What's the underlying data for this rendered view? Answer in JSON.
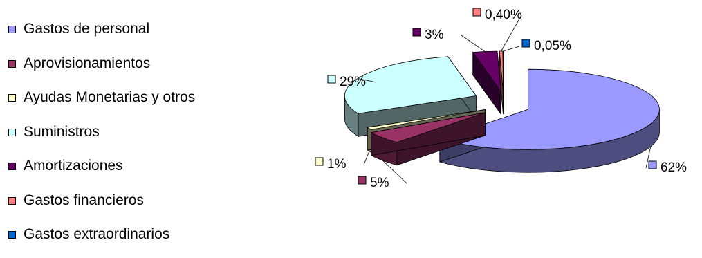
{
  "chart_data": {
    "type": "pie",
    "title": "",
    "legend_position": "left",
    "slices": [
      {
        "name": "Gastos de personal",
        "value": 62,
        "label": "62%",
        "color": "#9999FF"
      },
      {
        "name": "Aprovisionamientos",
        "value": 5,
        "label": "5%",
        "color": "#993366"
      },
      {
        "name": "Ayudas Monetarias y otros",
        "value": 1,
        "label": "1%",
        "color": "#FFFFCC"
      },
      {
        "name": "Suministros",
        "value": 29,
        "label": "29%",
        "color": "#CCFFFF"
      },
      {
        "name": "Amortizaciones",
        "value": 3,
        "label": "3%",
        "color": "#660066"
      },
      {
        "name": "Gastos financieros",
        "value": 0.4,
        "label": "0,40%",
        "color": "#FF8080"
      },
      {
        "name": "Gastos extraordinarios",
        "value": 0.05,
        "label": "0,05%",
        "color": "#0066CC"
      }
    ]
  }
}
